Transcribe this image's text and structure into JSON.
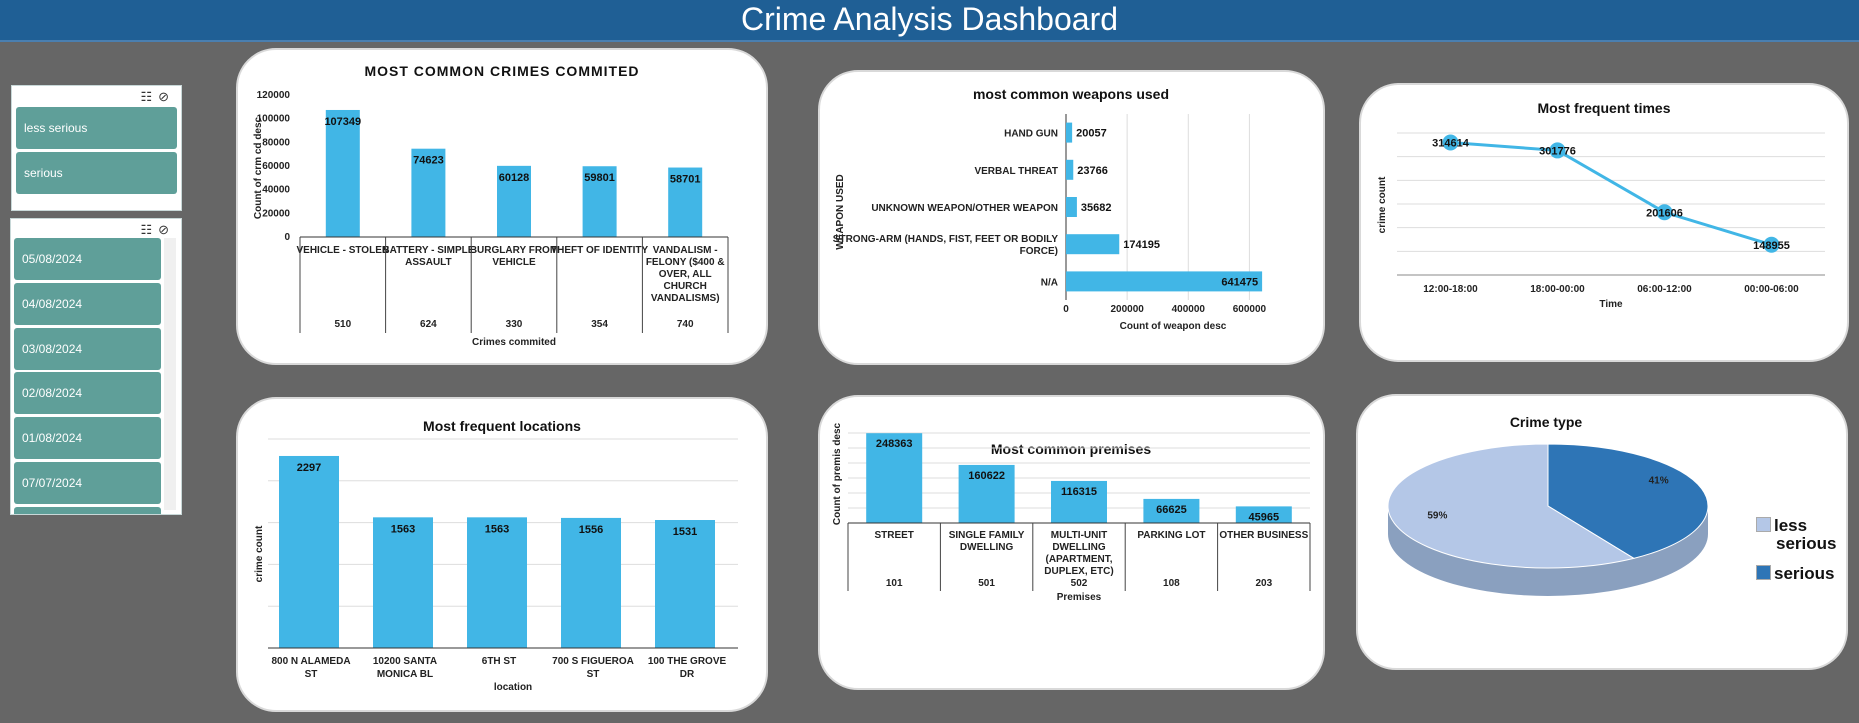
{
  "header": {
    "title": "Crime Analysis Dashboard"
  },
  "slicer_type": {
    "items": [
      "less serious",
      "serious"
    ]
  },
  "slicer_date": {
    "items": [
      "05/08/2024",
      "04/08/2024",
      "03/08/2024",
      "02/08/2024",
      "01/08/2024",
      "07/07/2024"
    ]
  },
  "colors": {
    "bar": "#41b6e6",
    "pie_light": "#b4c7e7",
    "pie_dark": "#2e75b6",
    "slicer": "#5f9f99",
    "header": "#1f5f95"
  },
  "chart_data": [
    {
      "id": "crimes",
      "type": "bar",
      "title": "MOST COMMON CRIMES COMMITED",
      "xlabel": "Crimes commited",
      "ylabel": "Count of crm cd desc",
      "categories": [
        [
          "VEHICLE - STOLEN"
        ],
        [
          "BATTERY - SIMPLE",
          "ASSAULT"
        ],
        [
          "BURGLARY FROM",
          "VEHICLE"
        ],
        [
          "THEFT OF IDENTITY"
        ],
        [
          "VANDALISM -",
          "FELONY ($400 &",
          "OVER, ALL",
          "CHURCH",
          "VANDALISMS)"
        ]
      ],
      "codes": [
        "510",
        "624",
        "330",
        "354",
        "740"
      ],
      "values": [
        107349,
        74623,
        60128,
        59801,
        58701
      ],
      "yticks": [
        0,
        20000,
        40000,
        60000,
        80000,
        100000,
        120000
      ],
      "ylim": [
        0,
        120000
      ]
    },
    {
      "id": "weapons",
      "type": "bar",
      "orientation": "horizontal",
      "title": "most common weapons used",
      "xlabel": "Count of weapon desc",
      "ylabel": "WEAPON USED",
      "categories": [
        [
          "HAND GUN"
        ],
        [
          "VERBAL THREAT"
        ],
        [
          "UNKNOWN WEAPON/OTHER WEAPON"
        ],
        [
          "STRONG-ARM (HANDS, FIST, FEET OR BODILY",
          "FORCE)"
        ],
        [
          "N/A"
        ]
      ],
      "values": [
        20057,
        23766,
        35682,
        174195,
        641475
      ],
      "xticks": [
        0,
        200000,
        400000,
        600000
      ],
      "xlim": [
        0,
        700000
      ]
    },
    {
      "id": "times",
      "type": "line",
      "title": "Most frequent times",
      "xlabel": "Time",
      "ylabel": "crime count",
      "categories": [
        "12:00-18:00",
        "18:00-00:00",
        "06:00-12:00",
        "00:00-06:00"
      ],
      "values": [
        314614,
        301776,
        201606,
        148955
      ]
    },
    {
      "id": "locations",
      "type": "bar",
      "title": "Most frequent locations",
      "xlabel": "location",
      "ylabel": "crime count",
      "categories": [
        [
          "800 N  ALAMEDA",
          "ST"
        ],
        [
          "10200     SANTA",
          "MONICA        BL"
        ],
        [
          "6TH                    ST"
        ],
        [
          "700 S  FIGUEROA",
          "ST"
        ],
        [
          "100    THE GROVE",
          "DR"
        ]
      ],
      "values": [
        2297,
        1563,
        1563,
        1556,
        1531
      ]
    },
    {
      "id": "premises",
      "type": "bar",
      "title": "Most common premises",
      "xlabel": "Premises",
      "ylabel": "Count of premis desc",
      "categories": [
        [
          "STREET"
        ],
        [
          "SINGLE FAMILY",
          "DWELLING"
        ],
        [
          "MULTI-UNIT",
          "DWELLING",
          "(APARTMENT,",
          "DUPLEX, ETC)"
        ],
        [
          "PARKING LOT"
        ],
        [
          "OTHER BUSINESS"
        ]
      ],
      "codes": [
        "101",
        "501",
        "502",
        "108",
        "203"
      ],
      "values": [
        248363,
        160622,
        116315,
        66625,
        45965
      ]
    },
    {
      "id": "crimetype",
      "type": "pie",
      "title": "Crime  type",
      "slices": [
        {
          "name": "less serious",
          "value": 59,
          "label": "59%"
        },
        {
          "name": "serious",
          "value": 41,
          "label": "41%"
        }
      ],
      "legend": [
        "less",
        "serious",
        "serious"
      ]
    }
  ]
}
